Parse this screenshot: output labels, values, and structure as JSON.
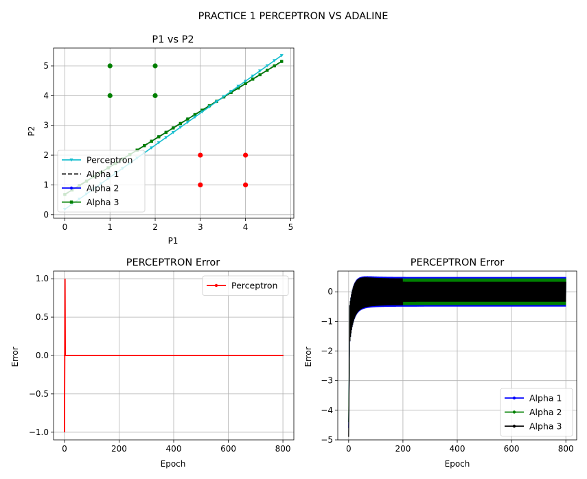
{
  "figure": {
    "suptitle": "PRACTICE 1 PERCEPTRON VS ADALINE"
  },
  "colors": {
    "perceptron": "#17becf",
    "alpha1": "#000000",
    "alpha2": "#0000ff",
    "alpha3": "#008000",
    "class_a": "#008000",
    "class_b": "#ff0000",
    "error_line": "#ff0000",
    "grid": "#b0b0b0"
  },
  "chart_data": [
    {
      "id": "p1p2",
      "type": "scatter",
      "title": "P1 vs P2",
      "xlabel": "P1",
      "ylabel": "P2",
      "xlim": [
        -0.25,
        5.07
      ],
      "ylim": [
        -0.12,
        5.6
      ],
      "xticks": [
        0,
        1,
        2,
        3,
        4,
        5
      ],
      "yticks": [
        0,
        1,
        2,
        3,
        4,
        5
      ],
      "grid": true,
      "legend_position": "lower-left",
      "points": [
        {
          "x": 1,
          "y": 5,
          "class": "green"
        },
        {
          "x": 2,
          "y": 5,
          "class": "green"
        },
        {
          "x": 1,
          "y": 4,
          "class": "green"
        },
        {
          "x": 2,
          "y": 4,
          "class": "green"
        },
        {
          "x": 3,
          "y": 2,
          "class": "red"
        },
        {
          "x": 4,
          "y": 2,
          "class": "red"
        },
        {
          "x": 3,
          "y": 1,
          "class": "red"
        },
        {
          "x": 4,
          "y": 1,
          "class": "red"
        }
      ],
      "series": [
        {
          "name": "Perceptron",
          "style": "solid",
          "marker": "triangle-down",
          "line": {
            "x0": 0,
            "y0": 0.18,
            "x1": 4.8,
            "y1": 5.35
          }
        },
        {
          "name": "Alpha 1",
          "style": "dashed",
          "marker": "none",
          "line": {
            "x0": 0,
            "y0": 0.68,
            "x1": 4.8,
            "y1": 5.15
          }
        },
        {
          "name": "Alpha 2",
          "style": "solid",
          "marker": "circle",
          "line": {
            "x0": 0,
            "y0": 0.68,
            "x1": 4.8,
            "y1": 5.15
          }
        },
        {
          "name": "Alpha 3",
          "style": "solid",
          "marker": "square",
          "line": {
            "x0": 0,
            "y0": 0.68,
            "x1": 4.8,
            "y1": 5.15
          }
        }
      ]
    },
    {
      "id": "perc_err",
      "type": "line",
      "title": "PERCEPTRON Error",
      "xlabel": "Epoch",
      "ylabel": "Error",
      "xlim": [
        -40,
        840
      ],
      "ylim": [
        -1.1,
        1.1
      ],
      "xticks": [
        0,
        200,
        400,
        600,
        800
      ],
      "yticks": [
        -1.0,
        -0.5,
        0.0,
        0.5,
        1.0
      ],
      "grid": true,
      "legend_position": "upper-right",
      "series": [
        {
          "name": "Perceptron",
          "x": [
            0,
            1,
            2,
            3,
            4,
            5,
            800
          ],
          "y": [
            -1,
            0,
            1,
            0,
            0,
            0,
            0
          ]
        }
      ]
    },
    {
      "id": "adaline_err",
      "type": "line",
      "title": "PERCEPTRON Error",
      "xlabel": "Epoch",
      "ylabel": "Error",
      "xlim": [
        -40,
        840
      ],
      "ylim": [
        -5.0,
        0.7
      ],
      "xticks": [
        0,
        200,
        400,
        600,
        800
      ],
      "yticks": [
        -5,
        -4,
        -3,
        -2,
        -1,
        0
      ],
      "grid": true,
      "legend_position": "lower-right",
      "series": [
        {
          "name": "Alpha 1",
          "start": -4.6,
          "steady_amplitude": 0.5,
          "peak": 0.65
        },
        {
          "name": "Alpha 2",
          "start": -4.4,
          "steady_amplitude": 0.45,
          "peak": 0.62
        },
        {
          "name": "Alpha 3",
          "start": -4.9,
          "steady_amplitude": 0.45,
          "peak": 0.65
        }
      ]
    }
  ]
}
